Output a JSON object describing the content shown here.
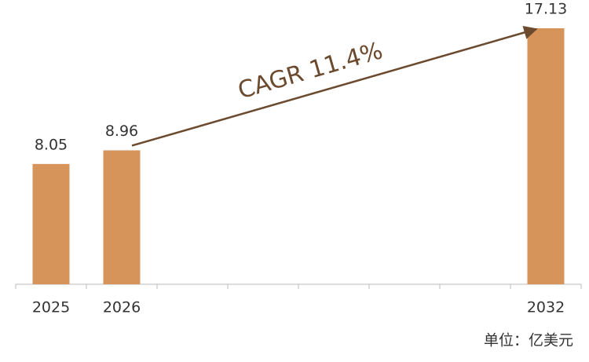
{
  "chart_data": {
    "type": "bar",
    "categories": [
      "2025",
      "2026",
      null,
      null,
      null,
      null,
      null,
      "2032"
    ],
    "values": [
      8.05,
      8.96,
      null,
      null,
      null,
      null,
      null,
      17.13
    ],
    "color": "#d6935a",
    "annotation": "CAGR 11.4%",
    "annotation_color": "#6b4a2e",
    "unit_note": "单位：亿美元"
  }
}
